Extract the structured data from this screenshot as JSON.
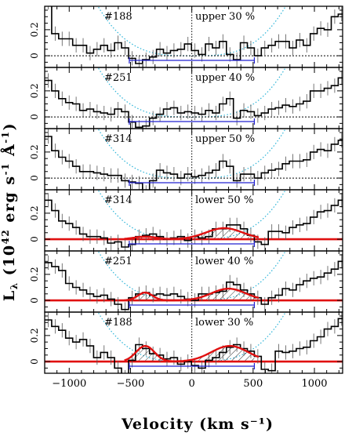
{
  "chart_data": {
    "type": "line",
    "xlabel": "Velocity (km s⁻¹)",
    "ylabel": "L",
    "ylabel_sub": "λ",
    "ylabel_unit_open": "(10",
    "ylabel_exp": "42",
    "ylabel_unit_mid": " erg s",
    "ylabel_exp2": "-1",
    "ylabel_unit_end": " Å",
    "ylabel_exp3": "-1",
    "ylabel_close": ")",
    "xlim": [
      -1200,
      1230
    ],
    "x_ticks": [
      -1000,
      -500,
      0,
      500,
      1000
    ],
    "x_tick_labels": [
      "−1000",
      "−500",
      "0",
      "500",
      "1000"
    ],
    "y_ticks": [
      0,
      0.2
    ],
    "y_tick_labels": [
      "0",
      "0.2"
    ],
    "colors": {
      "spectrum": "#000000",
      "fit": "#e01010",
      "envelope": "#2cb4d8",
      "bar": "#2020d0",
      "hatch": "#000000"
    },
    "panels": [
      {
        "id": "#188",
        "label": "upper 30 %",
        "ylim": [
          -0.09,
          0.38
        ],
        "fit": false,
        "y": [
          0.41,
          0.17,
          0.13,
          0.13,
          0.08,
          0.08,
          0.02,
          0.05,
          0.08,
          0.04,
          0.1,
          0.06,
          -0.02,
          -0.06,
          -0.03,
          -0.01,
          0.05,
          0.02,
          0.04,
          0.05,
          0.09,
          0.04,
          0.01,
          0.09,
          0.06,
          0.11,
          0.01,
          -0.03,
          0.1,
          0.06,
          0.0,
          0.06,
          0.08,
          0.11,
          0.11,
          0.06,
          0.12,
          0.08,
          0.17,
          0.21,
          0.2,
          0.3,
          0.32
        ]
      },
      {
        "id": "#251",
        "label": "upper 40 %",
        "ylim": [
          -0.09,
          0.38
        ],
        "fit": false,
        "y": [
          0.28,
          0.2,
          0.14,
          0.11,
          0.1,
          0.05,
          0.06,
          0.04,
          0.03,
          0.02,
          0.06,
          0.04,
          -0.04,
          -0.08,
          -0.07,
          -0.01,
          0.02,
          0.06,
          0.07,
          0.03,
          0.04,
          0.03,
          0.02,
          0.05,
          0.03,
          0.1,
          0.14,
          -0.01,
          0.05,
          0.04,
          0.01,
          0.03,
          0.06,
          0.07,
          0.09,
          0.08,
          0.1,
          0.12,
          0.2,
          0.2,
          0.22,
          0.24,
          0.3
        ]
      },
      {
        "id": "#314",
        "label": "upper 50 %",
        "ylim": [
          -0.09,
          0.38
        ],
        "fit": false,
        "y": [
          0.32,
          0.21,
          0.16,
          0.13,
          0.09,
          0.05,
          0.05,
          0.04,
          0.03,
          0.02,
          0.02,
          -0.02,
          -0.03,
          -0.04,
          -0.11,
          -0.02,
          0.06,
          0.04,
          0.03,
          0.0,
          0.03,
          0.01,
          0.02,
          0.04,
          0.06,
          0.13,
          0.09,
          -0.02,
          0.03,
          0.03,
          0.0,
          0.04,
          0.06,
          0.07,
          0.11,
          0.13,
          0.13,
          0.14,
          0.2,
          0.22,
          0.21,
          0.26,
          0.29
        ]
      },
      {
        "id": "#314",
        "label": "lower 50 %",
        "ylim": [
          -0.09,
          0.38
        ],
        "fit": true,
        "y": [
          0.3,
          0.22,
          0.14,
          0.12,
          0.09,
          0.04,
          0.02,
          0.02,
          0.01,
          -0.03,
          -0.02,
          -0.06,
          -0.04,
          0.02,
          0.03,
          0.04,
          0.02,
          0.0,
          0.01,
          0.02,
          -0.01,
          0.02,
          0.01,
          0.02,
          0.08,
          0.08,
          0.11,
          0.11,
          0.08,
          0.03,
          -0.02,
          -0.04,
          0.06,
          0.06,
          0.05,
          0.09,
          0.11,
          0.12,
          0.17,
          0.21,
          0.22,
          0.26,
          0.3
        ],
        "fit_peaks": [
          {
            "center": 265,
            "amp": 0.085,
            "sigma": 150
          },
          {
            "center": -380,
            "amp": 0.02,
            "sigma": 90
          }
        ]
      },
      {
        "id": "#251",
        "label": "lower 40 %",
        "ylim": [
          -0.09,
          0.38
        ],
        "fit": true,
        "y": [
          0.29,
          0.26,
          0.23,
          0.13,
          0.1,
          0.08,
          0.05,
          0.03,
          0.04,
          0.01,
          -0.03,
          -0.07,
          0.02,
          0.05,
          0.06,
          0.04,
          0.05,
          0.04,
          0.05,
          0.03,
          0.01,
          0.0,
          0.05,
          0.05,
          0.06,
          0.07,
          0.14,
          0.12,
          0.08,
          0.05,
          0.02,
          -0.03,
          0.02,
          0.04,
          0.09,
          0.08,
          0.12,
          0.15,
          0.17,
          0.18,
          0.21,
          0.24,
          0.3
        ],
        "fit_peaks": [
          {
            "center": 300,
            "amp": 0.09,
            "sigma": 140
          },
          {
            "center": -380,
            "amp": 0.06,
            "sigma": 60
          }
        ]
      },
      {
        "id": "#188",
        "label": "lower 30 %",
        "ylim": [
          -0.09,
          0.38
        ],
        "fit": true,
        "y": [
          0.32,
          0.27,
          0.24,
          0.18,
          0.15,
          0.17,
          0.12,
          0.03,
          0.07,
          0.03,
          -0.05,
          -0.12,
          0.01,
          0.13,
          0.1,
          0.06,
          0.05,
          0.02,
          0.03,
          -0.02,
          0.0,
          -0.03,
          -0.05,
          0.01,
          0.03,
          0.07,
          0.11,
          0.13,
          0.1,
          0.08,
          0.04,
          -0.06,
          -0.07,
          0.08,
          0.07,
          0.08,
          0.1,
          0.11,
          0.16,
          0.19,
          0.25,
          0.27,
          0.33
        ],
        "fit_peaks": [
          {
            "center": 310,
            "amp": 0.12,
            "sigma": 150
          },
          {
            "center": -380,
            "amp": 0.12,
            "sigma": 75
          }
        ]
      }
    ],
    "bin_start": -1200,
    "bin_width": 57,
    "bar_range": [
      -510,
      510
    ],
    "envelope_center_sigma": 720
  }
}
